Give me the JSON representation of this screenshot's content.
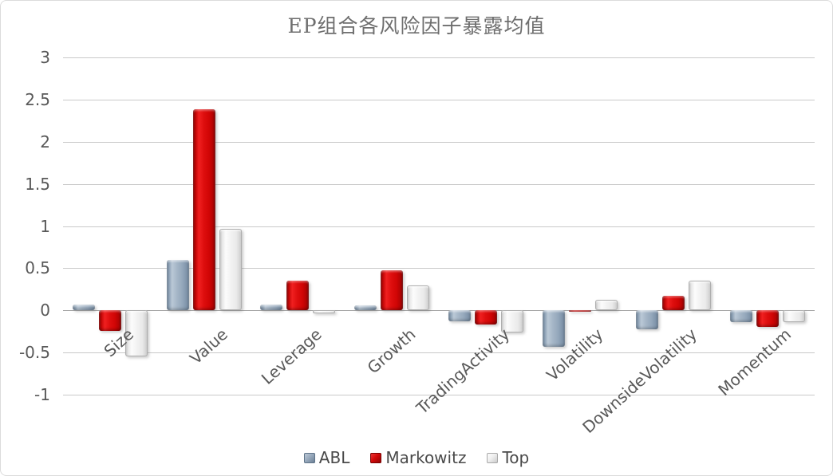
{
  "chart_data": {
    "type": "bar",
    "title": "EP组合各风险因子暴露均值",
    "categories": [
      "Size",
      "Value",
      "Leverage",
      "Growth",
      "TradingActivity",
      "Volatility",
      "DownsideVolatility",
      "Momentum"
    ],
    "series": [
      {
        "name": "ABL",
        "color": "#9AABBE",
        "values": [
          0.07,
          0.6,
          0.07,
          0.06,
          -0.13,
          -0.43,
          -0.22,
          -0.14
        ]
      },
      {
        "name": "Markowitz",
        "color": "#D40A0A",
        "values": [
          -0.24,
          2.39,
          0.35,
          0.48,
          -0.17,
          -0.02,
          0.17,
          -0.2
        ]
      },
      {
        "name": "Top",
        "color": "#F0F0F0",
        "values": [
          -0.55,
          0.97,
          -0.04,
          0.3,
          -0.26,
          0.13,
          0.35,
          -0.14
        ]
      }
    ],
    "y_ticks": [
      3,
      2.5,
      2,
      1.5,
      1,
      0.5,
      0,
      -0.5,
      -1
    ],
    "ylim": [
      -1,
      3
    ],
    "xlabel": "",
    "ylabel": "",
    "grid": true,
    "legend_position": "bottom",
    "gridline_color": "#c9c9c9",
    "axis_text_color": "#595959"
  }
}
